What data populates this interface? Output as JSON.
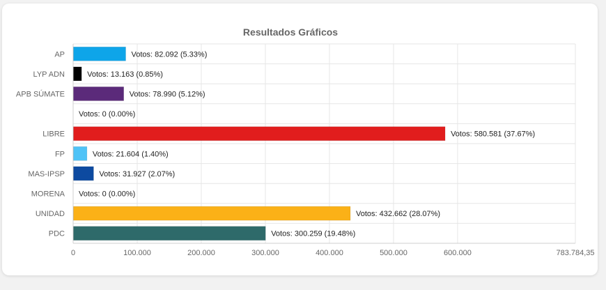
{
  "chart_data": {
    "type": "bar",
    "orientation": "horizontal",
    "title": "Resultados Gráficos",
    "xlabel": "",
    "ylabel": "",
    "xlim": [
      0,
      783784.35
    ],
    "x_ticks": [
      0,
      100000,
      200000,
      300000,
      400000,
      500000,
      600000,
      783784.35
    ],
    "x_tick_labels": [
      "0",
      "100.000",
      "200.000",
      "300.000",
      "400.000",
      "500.000",
      "600.000",
      "783.784,35"
    ],
    "grid": true,
    "legend": false,
    "categories": [
      "AP",
      "LYP ADN",
      "APB SÚMATE",
      "",
      "LIBRE",
      "FP",
      "MAS-IPSP",
      "MORENA",
      "UNIDAD",
      "PDC"
    ],
    "values": [
      82092,
      13163,
      78990,
      0,
      580581,
      21604,
      31927,
      0,
      432662,
      300259
    ],
    "data_labels": [
      "Votos: 82.092 (5.33%)",
      "Votos: 13.163 (0.85%)",
      "Votos: 78.990 (5.12%)",
      "Votos: 0 (0.00%)",
      "Votos: 580.581 (37.67%)",
      "Votos: 21.604 (1.40%)",
      "Votos: 31.927 (2.07%)",
      "Votos: 0 (0.00%)",
      "Votos: 432.662 (28.07%)",
      "Votos: 300.259 (19.48%)"
    ],
    "colors": [
      "#0ea5e9",
      "#000000",
      "#5b2a7a",
      "#cccccc",
      "#e11d1d",
      "#4fc3f7",
      "#0d4aa0",
      "#8b1a1a",
      "#fbb117",
      "#2e6a6a"
    ]
  }
}
